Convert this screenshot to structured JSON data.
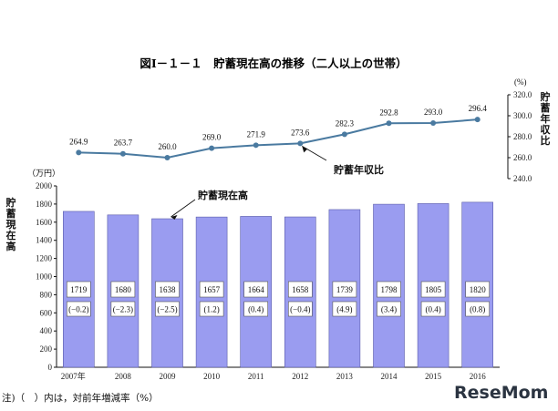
{
  "title": "図Ⅰ－１－１　貯蓄現在高の推移（二人以上の世帯）",
  "note": "注)（　）内は，対前年増減率（%）",
  "logo": "ReseMom",
  "colors": {
    "bar": "#9a9cf0",
    "bar_edge": "#5a5ca8",
    "line": "#4a7aa0"
  },
  "chart_data": [
    {
      "type": "bar",
      "name": "貯蓄現在高",
      "categories": [
        "2007年",
        "2008",
        "2009",
        "2010",
        "2011",
        "2012",
        "2013",
        "2014",
        "2015",
        "2016"
      ],
      "values": [
        1719,
        1680,
        1638,
        1657,
        1664,
        1658,
        1739,
        1798,
        1805,
        1820
      ],
      "changes": [
        "(−0.2)",
        "(−2.3)",
        "(−2.5)",
        "(1.2)",
        "(0.4)",
        "(−0.4)",
        "(4.9)",
        "(3.4)",
        "(0.4)",
        "(0.8)"
      ],
      "ylabel": "貯蓄現在高",
      "yunit": "（万円）",
      "ylim": [
        0,
        2000
      ],
      "yticks": [
        0,
        200,
        400,
        600,
        800,
        1000,
        1200,
        1400,
        1600,
        1800,
        2000
      ],
      "annotation": "貯蓄現在高"
    },
    {
      "type": "line",
      "name": "貯蓄年収比",
      "categories": [
        "2007年",
        "2008",
        "2009",
        "2010",
        "2011",
        "2012",
        "2013",
        "2014",
        "2015",
        "2016"
      ],
      "values": [
        264.9,
        263.7,
        260.0,
        269.0,
        271.9,
        273.6,
        282.3,
        292.8,
        293.0,
        296.4
      ],
      "ylabel": "貯蓄年収比",
      "yunit": "(%)",
      "ylim": [
        240,
        320
      ],
      "yticks": [
        "240.0",
        "260.0",
        "280.0",
        "300.0",
        "320.0"
      ],
      "annotation": "貯蓄年収比"
    }
  ]
}
